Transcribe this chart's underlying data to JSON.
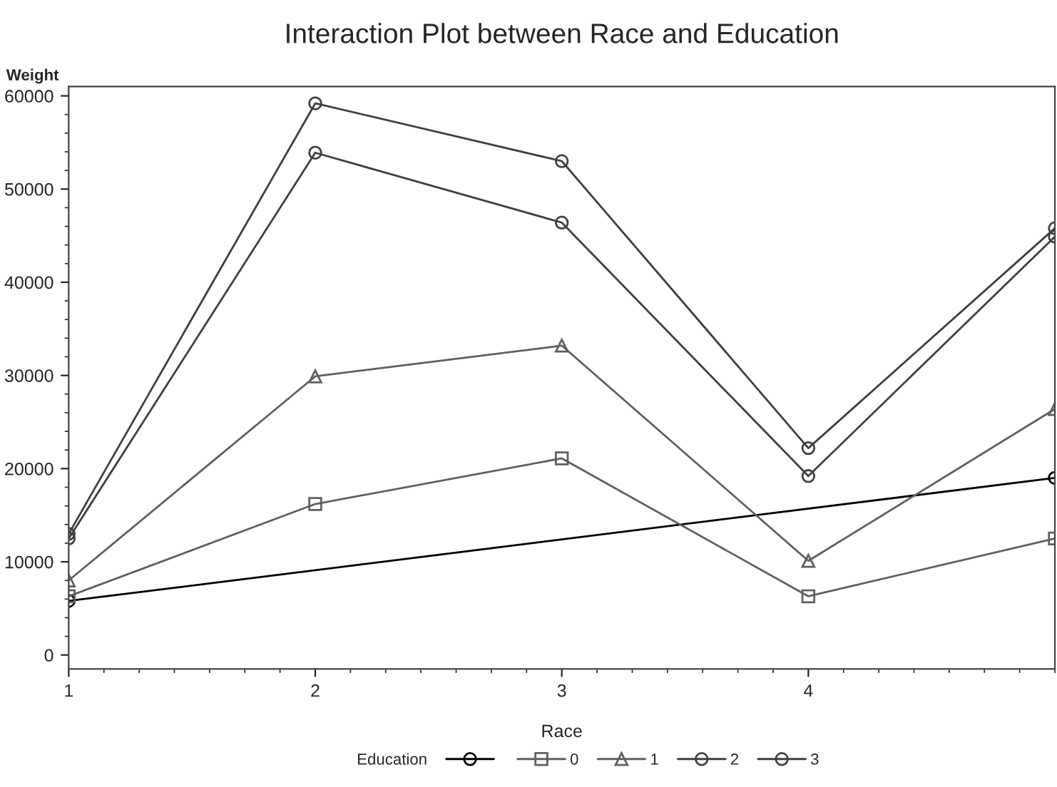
{
  "chart_data": {
    "type": "line",
    "title": "Interaction Plot between Race and Education",
    "xlabel": "Race",
    "ylabel": "Weight",
    "legend_title": "Education",
    "x": [
      1,
      2,
      3,
      4,
      5
    ],
    "series": [
      {
        "color": "#000000",
        "marker": "circle",
        "x": [
          1,
          5
        ],
        "values": [
          5800,
          19000
        ]
      },
      {
        "name": "0",
        "color": "#606060",
        "marker": "square",
        "values": [
          6300,
          16200,
          21100,
          6300,
          12500
        ]
      },
      {
        "name": "1",
        "color": "#606060",
        "marker": "triangle",
        "values": [
          8000,
          29900,
          33200,
          10100,
          26400
        ]
      },
      {
        "name": "2",
        "color": "#404040",
        "marker": "circle",
        "values": [
          12500,
          53900,
          46400,
          19200,
          44900
        ]
      },
      {
        "name": "3",
        "color": "#404040",
        "marker": "circle",
        "values": [
          13000,
          59200,
          53000,
          22200,
          45800
        ]
      }
    ],
    "xlim": [
      1,
      5
    ],
    "xticks": [
      1,
      2,
      3,
      4
    ],
    "ylim": [
      -1500,
      61000
    ],
    "yticks": [
      0,
      10000,
      20000,
      30000,
      40000,
      50000,
      60000
    ],
    "grid": false,
    "legend": "bottom"
  }
}
